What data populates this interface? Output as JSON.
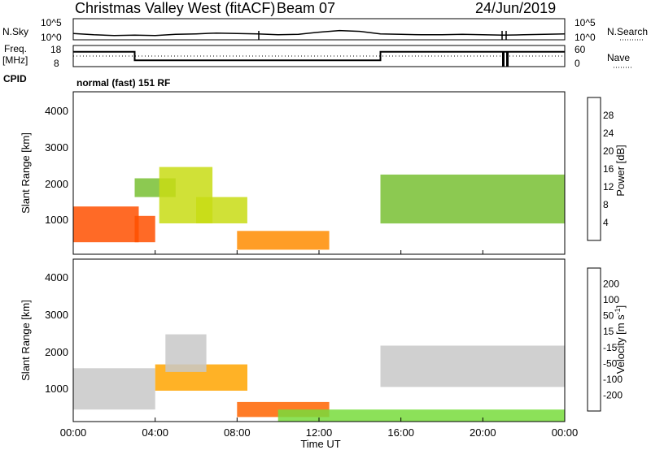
{
  "header": {
    "station": "Christmas Valley West (fitACF)",
    "beam": "Beam 07",
    "date": "24/Jun/2019"
  },
  "top_panels": {
    "nsky": {
      "left_label": "N.Sky",
      "left_ticks": [
        "10^5",
        "10^0"
      ],
      "right_label": "N.Search",
      "right_ticks": [
        "10^5",
        "10^0"
      ]
    },
    "freq": {
      "left_label_line1": "Freq.",
      "left_label_line2": "[MHz]",
      "left_ticks": [
        "18",
        "8"
      ],
      "right_label": "Nave",
      "right_ticks": [
        "60",
        "0"
      ]
    },
    "cpid": {
      "label": "CPID",
      "value": "normal (fast) 151 RF"
    }
  },
  "x_axis": {
    "label": "Time UT",
    "ticks": [
      "00:00",
      "04:00",
      "08:00",
      "12:00",
      "16:00",
      "20:00",
      "00:00"
    ]
  },
  "colors": {
    "power_scale": [
      "#0000ff",
      "#2850c8",
      "#2f8c64",
      "#50a050",
      "#78c032",
      "#c8dc14",
      "#f0b400",
      "#ff8c00",
      "#ff5000",
      "#ff0000"
    ],
    "velocity_scale": [
      "#ff0000",
      "#ff6400",
      "#ffa500",
      "#ffc832",
      "#c8c8c8",
      "#c8c8c8",
      "#78dc3c",
      "#30b43c",
      "#288c64",
      "#2850c8",
      "#0000ff"
    ]
  },
  "chart_data": [
    {
      "type": "line",
      "panel": "nsky-nsearch",
      "x_label": "Time UT",
      "series": [
        {
          "x": [
            0,
            1,
            2,
            3,
            4,
            5,
            6,
            7,
            8,
            9,
            10,
            11,
            12,
            13,
            14,
            15,
            16,
            17,
            18,
            19,
            20,
            21,
            22,
            23,
            24
          ],
          "y": [
            1.5,
            1.2,
            1.0,
            1.1,
            1.0,
            1.3,
            1.4,
            1.6,
            1.5,
            1.4,
            1.2,
            1.3,
            1.8,
            2.2,
            2.0,
            1.4,
            1.3,
            1.2,
            1.2,
            1.3,
            1.2,
            1.1,
            1.2,
            1.3,
            1.4
          ]
        }
      ],
      "ylim": [
        0,
        5
      ]
    },
    {
      "type": "line",
      "panel": "freq-nave",
      "x_label": "Time UT",
      "ylabel": "Freq. [MHz]",
      "series": [
        {
          "x": [
            0,
            3,
            3,
            15,
            15,
            24
          ],
          "y": [
            15,
            15,
            11,
            11,
            15,
            15
          ]
        }
      ],
      "ylim": [
        8,
        18
      ]
    },
    {
      "type": "heatmap",
      "title": "Power",
      "xlabel": "Time UT",
      "ylabel": "Slant Range [km]",
      "colorbar_label": "Power [dB]",
      "colorbar_ticks": [
        "4",
        "8",
        "12",
        "16",
        "20",
        "24",
        "28"
      ],
      "ylim": [
        180,
        4500
      ],
      "xlim": [
        0,
        24
      ],
      "y_ticks": [
        "1000",
        "2000",
        "3000",
        "4000"
      ],
      "regions": [
        {
          "x0": 0.0,
          "x1": 3.2,
          "y0": 500,
          "y1": 1450,
          "value": 28
        },
        {
          "x0": 3.0,
          "x1": 4.0,
          "y0": 500,
          "y1": 1200,
          "value": 26
        },
        {
          "x0": 3.0,
          "x1": 5.0,
          "y0": 1700,
          "y1": 2200,
          "value": 14
        },
        {
          "x0": 4.2,
          "x1": 6.8,
          "y0": 1000,
          "y1": 2500,
          "value": 18
        },
        {
          "x0": 6.0,
          "x1": 8.5,
          "y0": 1000,
          "y1": 1700,
          "value": 16
        },
        {
          "x0": 8.0,
          "x1": 12.5,
          "y0": 300,
          "y1": 800,
          "value": 24
        },
        {
          "x0": 15.0,
          "x1": 24.0,
          "y0": 1000,
          "y1": 2300,
          "value": 12
        }
      ]
    },
    {
      "type": "heatmap",
      "title": "Velocity",
      "xlabel": "Time UT",
      "ylabel": "Slant Range [km]",
      "colorbar_label": "Velocity [m s^-1]",
      "colorbar_ticks": [
        "200",
        "100",
        "50",
        "15",
        "-15",
        "-50",
        "-100",
        "-200"
      ],
      "ylim": [
        180,
        4500
      ],
      "xlim": [
        0,
        24
      ],
      "y_ticks": [
        "1000",
        "2000",
        "3000",
        "4000"
      ],
      "regions": [
        {
          "x0": 0.0,
          "x1": 4.0,
          "y0": 500,
          "y1": 1600,
          "value": 0
        },
        {
          "x0": 4.0,
          "x1": 8.5,
          "y0": 1000,
          "y1": 1700,
          "value": -30
        },
        {
          "x0": 4.5,
          "x1": 6.5,
          "y0": 1500,
          "y1": 2500,
          "value": 0
        },
        {
          "x0": 8.0,
          "x1": 12.5,
          "y0": 300,
          "y1": 700,
          "value": -60
        },
        {
          "x0": 10.0,
          "x1": 24.0,
          "y0": 180,
          "y1": 500,
          "value": 40
        },
        {
          "x0": 15.0,
          "x1": 24.0,
          "y0": 1100,
          "y1": 2200,
          "value": 0
        }
      ]
    }
  ]
}
